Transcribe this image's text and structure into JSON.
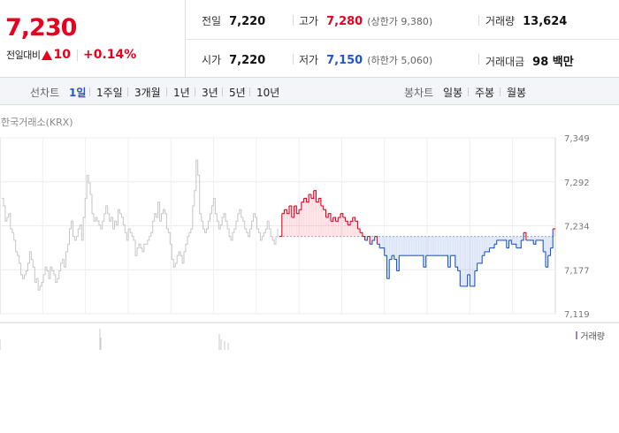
{
  "quote": {
    "price": "7,230",
    "change_label": "전일대비",
    "change_value": "10",
    "change_rate": "+0.14%",
    "prev_close_label": "전일",
    "prev_close": "7,220",
    "open_label": "시가",
    "open": "7,220",
    "high_label": "고가",
    "high": "7,280",
    "upper_limit": "(상한가 9,380)",
    "low_label": "저가",
    "low": "7,150",
    "lower_limit": "(하한가 5,060)",
    "volume_label": "거래량",
    "volume": "13,624",
    "amount_label": "거래대금",
    "amount": "98 백만"
  },
  "toolbar": {
    "line_label": "선차트",
    "periods": [
      "1일",
      "1주일",
      "3개월",
      "1년",
      "3년",
      "5년",
      "10년"
    ],
    "active_period": "1일",
    "candle_label": "봉차트",
    "candles": [
      "일봉",
      "주봉",
      "월봉"
    ]
  },
  "chart": {
    "source": "한국거래소(KRX)",
    "volume_legend": "거래량",
    "colors": {
      "up": "#e8001f",
      "down": "#1f57d1",
      "history": "#c6c6c6",
      "volume": "#9b85c9"
    }
  },
  "chart_data": {
    "type": "line",
    "title": "",
    "ylim": [
      7119,
      7349
    ],
    "y_ticks": [
      "7,349",
      "7,292",
      "7,234",
      "7,177",
      "7,119"
    ],
    "base_value": 7220,
    "grid": true,
    "series": [
      {
        "values": [
          7270,
          7260,
          7240,
          7245,
          7250,
          7230,
          7225,
          7215,
          7200,
          7195,
          7185,
          7170,
          7165,
          7170,
          7175,
          7185,
          7200,
          7190,
          7180,
          7160,
          7165,
          7150,
          7155,
          7160,
          7170,
          7180,
          7175,
          7165,
          7180,
          7175,
          7170,
          7160,
          7165,
          7175,
          7185,
          7190,
          7180,
          7200,
          7210,
          7230,
          7240,
          7220,
          7215,
          7220,
          7230,
          7235,
          7215,
          7245,
          7270,
          7300,
          7290,
          7275,
          7250,
          7240,
          7245,
          7240,
          7235,
          7230,
          7240,
          7250,
          7260,
          7250,
          7240,
          7245,
          7230,
          7240,
          7235,
          7255,
          7250,
          7245,
          7235,
          7225,
          7215,
          7230,
          7225,
          7220,
          7215,
          7195,
          7205,
          7210,
          7205,
          7200,
          7210,
          7210,
          7215,
          7220,
          7225,
          7240,
          7250,
          7245,
          7265,
          7240,
          7250,
          7255,
          7250,
          7230,
          7225,
          7210,
          7190,
          7180,
          7185,
          7195,
          7200,
          7195,
          7185,
          7200,
          7210,
          7220,
          7225,
          7230,
          7260,
          7280,
          7320,
          7300,
          7250,
          7240,
          7230,
          7225,
          7230,
          7240,
          7250,
          7260,
          7270,
          7250,
          7240,
          7230,
          7235,
          7245,
          7250,
          7240,
          7230,
          7220,
          7215,
          7225,
          7230,
          7240,
          7250,
          7255,
          7245,
          7240,
          7230,
          7225,
          7220,
          7230,
          7240,
          7250,
          7245,
          7230,
          7225,
          7215,
          7220,
          7225,
          7230,
          7240,
          7230,
          7220,
          7215,
          7210,
          7220,
          7230
        ]
      },
      {
        "values": [
          7220,
          7250,
          7255,
          7250,
          7260,
          7245,
          7260,
          7250,
          7255,
          7265,
          7270,
          7265,
          7275,
          7270,
          7280,
          7265,
          7270,
          7260,
          7255,
          7245,
          7250,
          7240,
          7245,
          7240,
          7245,
          7250,
          7245,
          7240,
          7235,
          7240,
          7245,
          7240,
          7230,
          7225,
          7220,
          7215,
          7220,
          7210,
          7215,
          7220,
          7210,
          7205,
          7205,
          7195,
          7165,
          7190,
          7195,
          7190,
          7175,
          7195,
          7195,
          7195,
          7195,
          7195,
          7195,
          7195,
          7195,
          7195,
          7195,
          7180,
          7195,
          7195,
          7195,
          7195,
          7195,
          7195,
          7195,
          7195,
          7195,
          7180,
          7195,
          7195,
          7180,
          7175,
          7155,
          7155,
          7155,
          7170,
          7155,
          7155,
          7175,
          7185,
          7185,
          7195,
          7200,
          7200,
          7205,
          7205,
          7210,
          7215,
          7215,
          7215,
          7215,
          7205,
          7215,
          7210,
          7210,
          7205,
          7205,
          7215,
          7225,
          7215,
          7215,
          7215,
          7210,
          7215,
          7215,
          7215,
          7200,
          7180,
          7195,
          7205,
          7230,
          7230
        ]
      }
    ]
  }
}
